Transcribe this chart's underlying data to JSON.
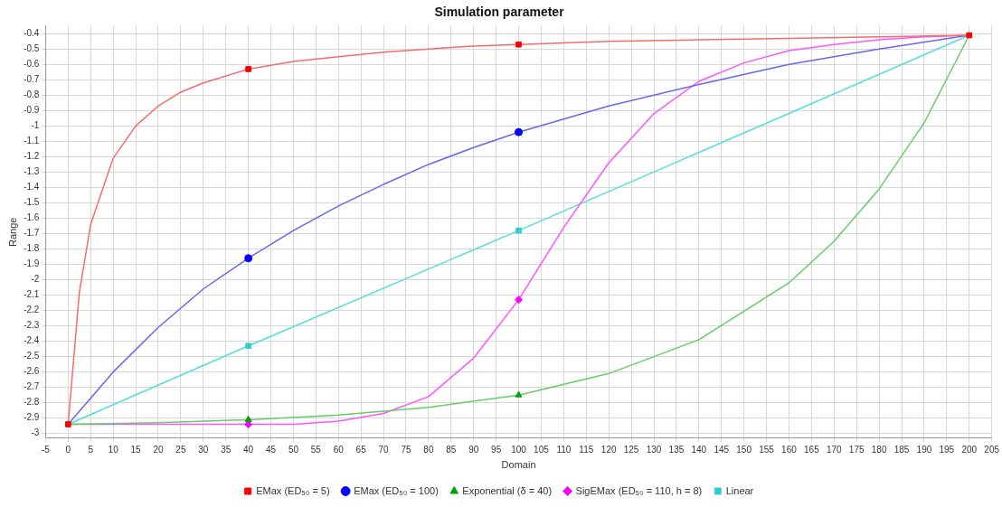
{
  "chart_data": {
    "type": "line",
    "title": "Simulation parameter",
    "xlabel": "Domain",
    "ylabel": "Range",
    "xlim": [
      -5,
      205
    ],
    "xticks": [
      -5,
      0,
      5,
      10,
      15,
      20,
      25,
      30,
      35,
      40,
      45,
      50,
      55,
      60,
      65,
      70,
      75,
      80,
      85,
      90,
      95,
      100,
      105,
      110,
      115,
      120,
      125,
      130,
      135,
      140,
      145,
      150,
      155,
      160,
      165,
      170,
      175,
      180,
      185,
      190,
      195,
      200,
      205
    ],
    "ylim": [
      -3.03,
      -0.35
    ],
    "yticks": [
      -3,
      -2.9,
      -2.8,
      -2.7,
      -2.6,
      -2.5,
      -2.4,
      -2.3,
      -2.2,
      -2.1,
      -2,
      -1.9,
      -1.8,
      -1.7,
      -1.6,
      -1.5,
      -1.4,
      -1.3,
      -1.2,
      -1.1,
      -1,
      -0.9,
      -0.8,
      -0.7,
      -0.6,
      -0.5,
      -0.4
    ],
    "grid": true,
    "legend": "bottom",
    "line_style": "solid",
    "series": [
      {
        "name": "EMax (ED₅₀ = 5)",
        "type": "scatter",
        "marker": "square",
        "color": "#ff0000",
        "x": [
          0,
          40,
          100,
          200
        ],
        "values": [
          -2.94,
          -0.63,
          -0.47,
          -0.41
        ]
      },
      {
        "name": "EMax (ED₅₀ = 100)",
        "type": "scatter",
        "marker": "circle",
        "color": "#0000ff",
        "x": [
          40,
          100
        ],
        "values": [
          -1.86,
          -1.04
        ]
      },
      {
        "name": "Exponential (δ = 40)",
        "type": "scatter",
        "marker": "triangle",
        "color": "#00a000",
        "x": [
          40,
          100
        ],
        "values": [
          -2.91,
          -2.75
        ]
      },
      {
        "name": "SigEMax (ED₅₀ = 110, h = 8)",
        "type": "scatter",
        "marker": "diamond",
        "color": "#ff00ff",
        "x": [
          40,
          100
        ],
        "values": [
          -2.94,
          -2.13
        ]
      },
      {
        "name": "Linear",
        "type": "scatter",
        "marker": "square",
        "color": "#33cccc",
        "x": [
          40,
          100
        ],
        "values": [
          -2.43,
          -1.68
        ]
      },
      {
        "marker": "none",
        "color": "#f86b6b",
        "x": [
          0,
          2.5,
          5,
          10,
          15,
          20,
          25,
          30,
          40,
          50,
          60,
          70,
          80,
          90,
          100,
          120,
          140,
          160,
          180,
          200
        ],
        "values": [
          -2.94,
          -2.08,
          -1.64,
          -1.21,
          -1.0,
          -0.87,
          -0.78,
          -0.72,
          -0.63,
          -0.58,
          -0.55,
          -0.52,
          -0.5,
          -0.48,
          -0.47,
          -0.45,
          -0.44,
          -0.43,
          -0.42,
          -0.41
        ]
      },
      {
        "marker": "none",
        "color": "#6666f0",
        "x": [
          0,
          10,
          20,
          30,
          40,
          50,
          60,
          70,
          80,
          90,
          100,
          120,
          140,
          160,
          180,
          200
        ],
        "values": [
          -2.94,
          -2.6,
          -2.31,
          -2.06,
          -1.86,
          -1.68,
          -1.52,
          -1.38,
          -1.25,
          -1.14,
          -1.04,
          -0.87,
          -0.73,
          -0.6,
          -0.5,
          -0.41
        ]
      },
      {
        "marker": "none",
        "color": "#66cc66",
        "x": [
          0,
          20,
          40,
          60,
          80,
          100,
          120,
          140,
          160,
          170,
          180,
          190,
          200
        ],
        "values": [
          -2.94,
          -2.93,
          -2.91,
          -2.88,
          -2.83,
          -2.75,
          -2.61,
          -2.39,
          -2.02,
          -1.75,
          -1.41,
          -0.98,
          -0.41
        ]
      },
      {
        "marker": "none",
        "color": "#ff55ff",
        "x": [
          0,
          20,
          40,
          50,
          60,
          70,
          80,
          90,
          100,
          110,
          120,
          130,
          140,
          150,
          160,
          170,
          180,
          190,
          200
        ],
        "values": [
          -2.94,
          -2.94,
          -2.94,
          -2.94,
          -2.92,
          -2.87,
          -2.76,
          -2.51,
          -2.13,
          -1.66,
          -1.24,
          -0.92,
          -0.71,
          -0.59,
          -0.51,
          -0.47,
          -0.44,
          -0.42,
          -0.41
        ]
      },
      {
        "marker": "none",
        "color": "#55dddd",
        "x": [
          0,
          40,
          100,
          200
        ],
        "values": [
          -2.94,
          -2.43,
          -1.68,
          -0.41
        ]
      }
    ]
  }
}
